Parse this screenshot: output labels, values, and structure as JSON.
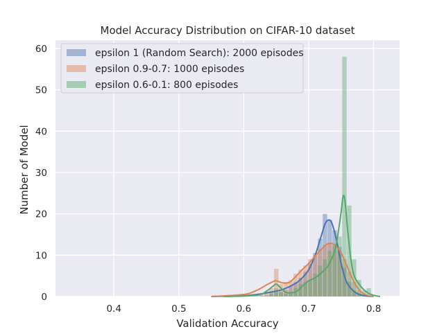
{
  "chart_data": {
    "type": "histogram",
    "title": "Model Accuracy Distribution on CIFAR-10 dataset",
    "xlabel": "Validation Accuracy",
    "ylabel": "Number of Model",
    "xlim": [
      0.31,
      0.84
    ],
    "ylim": [
      0,
      62
    ],
    "xticks": [
      "0.4",
      "0.5",
      "0.6",
      "0.7",
      "0.8"
    ],
    "yticks": [
      "0",
      "10",
      "20",
      "30",
      "40",
      "50",
      "60"
    ],
    "grid": true,
    "background": "#eaeaf2",
    "legend_position": "top-left",
    "bin_width": 0.0075,
    "series": [
      {
        "name": "epsilon 1 (Random Search): 2000 episodes",
        "color": "#4c72b0",
        "hist_x": [
          0.6275,
          0.635,
          0.6425,
          0.65,
          0.6575,
          0.665,
          0.6725,
          0.68,
          0.6875,
          0.695,
          0.7025,
          0.71,
          0.7175,
          0.725,
          0.7325,
          0.74,
          0.7475,
          0.755,
          0.7625,
          0.77,
          0.7775,
          0.785
        ],
        "hist_y": [
          0.2,
          0.4,
          0.6,
          1.0,
          1.2,
          1.6,
          2.5,
          3.5,
          4.5,
          6,
          8,
          10.5,
          14,
          20,
          18.5,
          16,
          12,
          7,
          3.5,
          1.5,
          0.6,
          0.3
        ],
        "kde_x": [
          0.55,
          0.6,
          0.62,
          0.64,
          0.66,
          0.68,
          0.69,
          0.7,
          0.71,
          0.72,
          0.725,
          0.73,
          0.735,
          0.74,
          0.745,
          0.75,
          0.755,
          0.76,
          0.77,
          0.78,
          0.79,
          0.8
        ],
        "kde_y": [
          0,
          0.2,
          0.5,
          1.0,
          1.7,
          3.2,
          4.5,
          6.5,
          10,
          15,
          17.5,
          18.5,
          18,
          15.5,
          12,
          8,
          5,
          3,
          1.2,
          0.4,
          0.1,
          0
        ]
      },
      {
        "name": "epsilon 0.9-0.7: 1000 episodes",
        "color": "#dd8452",
        "hist_x": [
          0.62,
          0.6275,
          0.635,
          0.6425,
          0.65,
          0.6575,
          0.665,
          0.6725,
          0.68,
          0.6875,
          0.695,
          0.7025,
          0.71,
          0.7175,
          0.725,
          0.7325,
          0.74,
          0.7475,
          0.755,
          0.7625,
          0.77,
          0.7775,
          0.785
        ],
        "hist_y": [
          0.3,
          0.8,
          1.2,
          2,
          6.7,
          3,
          3.5,
          4,
          5.5,
          6.5,
          7.5,
          9,
          10,
          11.5,
          12.5,
          13,
          12,
          11,
          9,
          6,
          3.5,
          1.5,
          0.6
        ],
        "kde_x": [
          0.55,
          0.6,
          0.62,
          0.635,
          0.645,
          0.65,
          0.66,
          0.67,
          0.68,
          0.69,
          0.7,
          0.71,
          0.72,
          0.73,
          0.74,
          0.75,
          0.76,
          0.77,
          0.78,
          0.79,
          0.8
        ],
        "kde_y": [
          0,
          0.5,
          1.5,
          2.8,
          3.6,
          3.8,
          3.3,
          3.4,
          4.8,
          6.5,
          8,
          9.8,
          11.5,
          12.8,
          12.5,
          10.5,
          7,
          3.5,
          1.2,
          0.3,
          0
        ]
      },
      {
        "name": "epsilon 0.6-0.1: 800 episodes",
        "color": "#55a868",
        "hist_x": [
          0.6425,
          0.65,
          0.6575,
          0.665,
          0.6725,
          0.68,
          0.6875,
          0.695,
          0.7025,
          0.71,
          0.7175,
          0.725,
          0.7325,
          0.74,
          0.7475,
          0.755,
          0.7625,
          0.77,
          0.7775,
          0.785,
          0.7925
        ],
        "hist_y": [
          1,
          2,
          1,
          0.6,
          1.2,
          2,
          3,
          3.5,
          4,
          5.5,
          7.5,
          9,
          11,
          12.5,
          14.5,
          58,
          22,
          9,
          4,
          1.5,
          2
        ],
        "kde_x": [
          0.57,
          0.62,
          0.635,
          0.645,
          0.65,
          0.655,
          0.665,
          0.68,
          0.69,
          0.7,
          0.71,
          0.72,
          0.73,
          0.74,
          0.745,
          0.75,
          0.753,
          0.756,
          0.76,
          0.765,
          0.77,
          0.78,
          0.79,
          0.8,
          0.81
        ],
        "kde_y": [
          0,
          0.3,
          1.3,
          2.5,
          3.0,
          2.4,
          1.0,
          1.1,
          2.5,
          3.8,
          4.5,
          5.8,
          7.5,
          11,
          15,
          20.5,
          24.3,
          23,
          16,
          9,
          5,
          2.5,
          1.0,
          0.3,
          0
        ]
      }
    ]
  }
}
